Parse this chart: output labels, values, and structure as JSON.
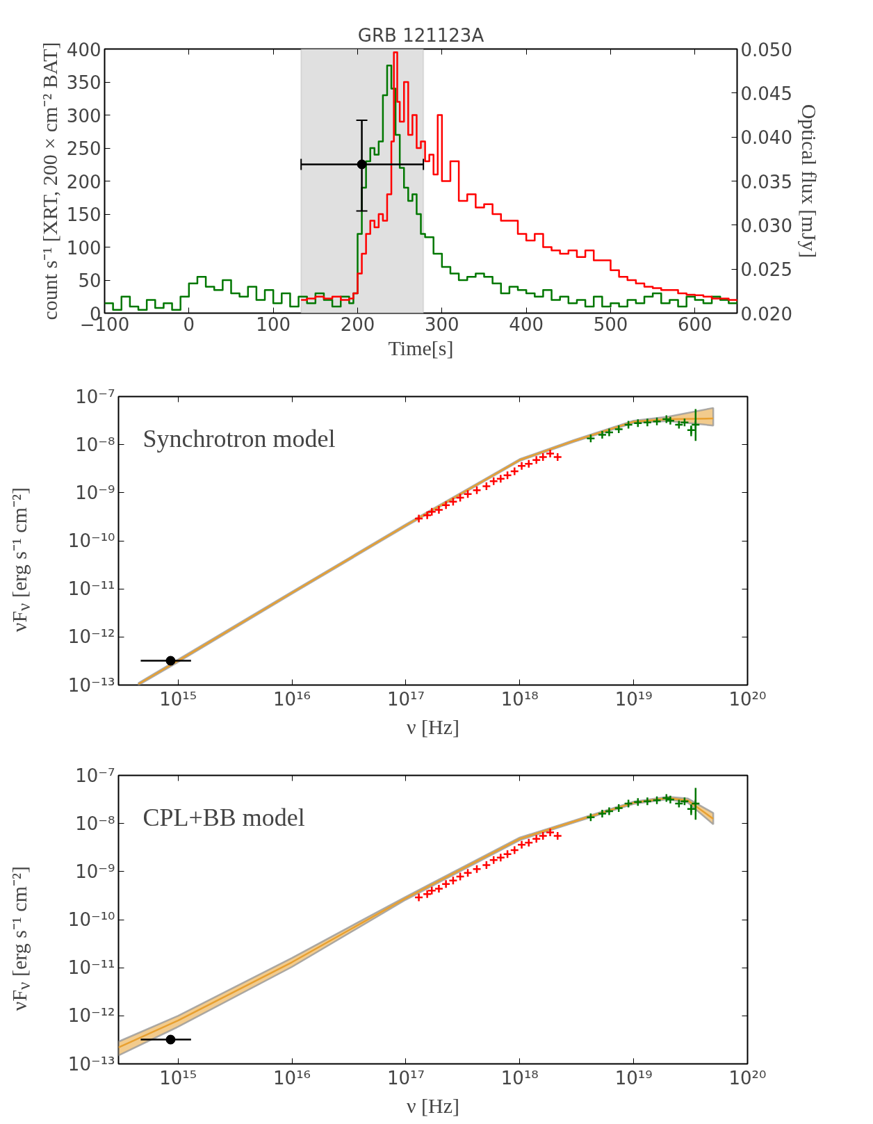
{
  "chart_data": [
    {
      "type": "step",
      "title": "GRB 121123A",
      "xlabel": "Time[s]",
      "ylabel": "count s⁻¹ [XRT, 200 × cm⁻² BAT]",
      "y2label": "Optical flux [mJy]",
      "xlim": [
        -100,
        650
      ],
      "xticks": [
        {
          "value": -100,
          "label": "−100"
        },
        0,
        100,
        200,
        300,
        400,
        500,
        600
      ],
      "ylim": [
        0,
        400
      ],
      "yticks": [
        0,
        50,
        100,
        150,
        200,
        250,
        300,
        350,
        400
      ],
      "y2lim": [
        0.02,
        0.05
      ],
      "y2ticks": [
        {
          "value": 0.02,
          "label": "0.020"
        },
        {
          "value": 0.025,
          "label": "0.025"
        },
        {
          "value": 0.03,
          "label": "0.030"
        },
        {
          "value": 0.035,
          "label": "0.035"
        },
        {
          "value": 0.04,
          "label": "0.040"
        },
        {
          "value": 0.045,
          "label": "0.045"
        },
        {
          "value": 0.05,
          "label": "0.050"
        }
      ],
      "bands": [
        {
          "axis": "x",
          "from": 133,
          "to": 278,
          "color": "#e0e0e0"
        }
      ],
      "series": [
        {
          "color": "#007700",
          "x": [
            -100,
            -90,
            -80,
            -70,
            -60,
            -50,
            -40,
            -30,
            -20,
            -10,
            0,
            10,
            20,
            30,
            40,
            50,
            60,
            70,
            80,
            90,
            100,
            110,
            120,
            130,
            140,
            150,
            160,
            170,
            180,
            190,
            195,
            200,
            205,
            210,
            215,
            220,
            225,
            230,
            235,
            240,
            245,
            250,
            255,
            260,
            265,
            270,
            275,
            280,
            290,
            300,
            310,
            320,
            330,
            340,
            350,
            360,
            370,
            380,
            390,
            400,
            410,
            420,
            430,
            440,
            450,
            460,
            470,
            480,
            490,
            500,
            510,
            520,
            530,
            540,
            550,
            560,
            570,
            580,
            590,
            600,
            610,
            620,
            630,
            640,
            650
          ],
          "values": [
            15,
            5,
            25,
            10,
            5,
            20,
            8,
            15,
            5,
            25,
            45,
            55,
            40,
            35,
            50,
            30,
            25,
            40,
            20,
            35,
            15,
            30,
            10,
            25,
            15,
            30,
            20,
            10,
            25,
            15,
            30,
            120,
            190,
            230,
            250,
            240,
            260,
            330,
            375,
            340,
            270,
            220,
            190,
            170,
            180,
            150,
            120,
            115,
            90,
            70,
            60,
            50,
            55,
            60,
            55,
            45,
            30,
            40,
            35,
            30,
            25,
            35,
            20,
            25,
            15,
            20,
            10,
            25,
            10,
            15,
            10,
            20,
            15,
            25,
            30,
            15,
            20,
            10,
            25,
            20,
            15,
            25,
            20,
            15,
            20
          ]
        },
        {
          "color": "#ff0000",
          "x": [
            133,
            140,
            150,
            160,
            170,
            180,
            190,
            195,
            200,
            205,
            210,
            215,
            220,
            225,
            230,
            235,
            240,
            243,
            247,
            250,
            255,
            260,
            265,
            270,
            275,
            280,
            285,
            290,
            295,
            300,
            310,
            320,
            330,
            340,
            350,
            360,
            370,
            380,
            390,
            400,
            410,
            420,
            430,
            440,
            450,
            460,
            470,
            480,
            490,
            500,
            510,
            520,
            530,
            540,
            550,
            560,
            570,
            580,
            590,
            600,
            610,
            620,
            630,
            640,
            650
          ],
          "values": [
            20,
            22,
            25,
            22,
            25,
            20,
            22,
            30,
            60,
            90,
            120,
            140,
            130,
            150,
            140,
            180,
            260,
            395,
            320,
            290,
            350,
            270,
            300,
            250,
            260,
            230,
            240,
            210,
            300,
            200,
            230,
            170,
            180,
            160,
            165,
            150,
            140,
            140,
            120,
            110,
            120,
            100,
            95,
            90,
            95,
            85,
            95,
            80,
            80,
            65,
            55,
            50,
            45,
            40,
            38,
            35,
            35,
            30,
            28,
            27,
            25,
            22,
            22,
            20,
            18
          ]
        },
        {
          "type": "scatter",
          "axis": "y2",
          "color": "#000000",
          "marker": "circle",
          "x": [
            205
          ],
          "values": [
            0.0369
          ],
          "errors": [
            [
              0.0316,
              0.0419
            ]
          ],
          "xerrors": [
            [
              133,
              278
            ]
          ]
        }
      ]
    },
    {
      "type": "line",
      "xlabel": "ν [Hz]",
      "ylabel": "νF$_{ν}$ [erg s⁻¹ cm⁻²]",
      "log": "xy",
      "annotations": [
        "Synchrotron model"
      ],
      "xlim": [
        300000000000000.0,
        1e+20
      ],
      "xticks": [
        {
          "value": 1000000000000000.0,
          "label": "10¹⁵"
        },
        {
          "value": 1e+16,
          "label": "10¹⁶"
        },
        {
          "value": 1e+17,
          "label": "10¹⁷"
        },
        {
          "value": 1e+18,
          "label": "10¹⁸"
        },
        {
          "value": 1e+19,
          "label": "10¹⁹"
        },
        {
          "value": 1e+20,
          "label": "10²⁰"
        }
      ],
      "ylim": [
        1e-13,
        1e-07
      ],
      "yticks": [
        {
          "value": 1e-13,
          "label": "10⁻¹³"
        },
        {
          "value": 1e-12,
          "label": "10⁻¹²"
        },
        {
          "value": 1e-11,
          "label": "10⁻¹¹"
        },
        {
          "value": 1e-10,
          "label": "10⁻¹⁰"
        },
        {
          "value": 1e-09,
          "label": "10⁻⁹"
        },
        {
          "value": 1e-08,
          "label": "10⁻⁸"
        },
        {
          "value": 1e-07,
          "label": "10⁻⁷"
        }
      ],
      "series": [
        {
          "color": "#e8a030",
          "x": [
            450000000000000.0,
            1000000000000000.0,
            1e+16,
            1e+17,
            1e+18,
            3e+18,
            1e+19,
            2e+19,
            5e+19
          ],
          "values": [
            1.05e-13,
            3.2e-13,
            8.3e-12,
            2.1e-10,
            4.8e-09,
            1.2e-08,
            3e-08,
            3.4e-08,
            3.5e-08
          ],
          "lower": [
            1e-13,
            3e-13,
            7.9e-12,
            2e-10,
            4.6e-09,
            1.15e-08,
            2.85e-08,
            3.1e-08,
            2.5e-08
          ],
          "upper": [
            1.1e-13,
            3.4e-13,
            8.7e-12,
            2.2e-10,
            5e-09,
            1.25e-08,
            3.15e-08,
            3.8e-08,
            5.8e-08
          ]
        },
        {
          "type": "scatter",
          "color": "#ff0000",
          "marker": "cross",
          "x": [
            1.3e+17,
            1.54e+17,
            1.69e+17,
            1.95e+17,
            2.25e+17,
            2.6e+17,
            3e+17,
            3.5e+17,
            4.2e+17,
            5.1e+17,
            5.9e+17,
            6.8e+17,
            7.8e+17,
            9e+17,
            1.04e+18,
            1.2e+18,
            1.4e+18,
            1.6e+18,
            1.85e+18,
            2.15e+18
          ],
          "values": [
            2.9e-10,
            3.4e-10,
            4e-10,
            4.4e-10,
            5.5e-10,
            6.5e-10,
            7.9e-10,
            9.4e-10,
            1.13e-09,
            1.36e-09,
            1.73e-09,
            1.95e-09,
            2.3e-09,
            2.8e-09,
            3.6e-09,
            4e-09,
            4.8e-09,
            5.5e-09,
            6.5e-09,
            5.5e-09
          ]
        },
        {
          "type": "scatter",
          "color": "#007700",
          "marker": "cross",
          "x": [
            4.2e+18,
            5.3e+18,
            6.1e+18,
            7.4e+18,
            9e+18,
            1.09e+19,
            1.32e+19,
            1.6e+19,
            1.94e+19,
            2.1e+19,
            2.5e+19,
            2.8e+19,
            3.2e+19,
            3.5e+19
          ],
          "values": [
            1.35e-08,
            1.6e-08,
            1.8e-08,
            2.1e-08,
            2.6e-08,
            2.8e-08,
            2.9e-08,
            3.05e-08,
            3.4e-08,
            3.15e-08,
            2.6e-08,
            2.9e-08,
            2e-08,
            2.6e-08
          ],
          "errors": [
            null,
            null,
            null,
            null,
            null,
            null,
            null,
            null,
            null,
            null,
            null,
            null,
            [
              1.5e-08,
              2.5e-08
            ],
            [
              1.2e-08,
              5.5e-08
            ]
          ]
        },
        {
          "type": "scatter",
          "color": "#000000",
          "marker": "circle",
          "x": [
            860000000000000.0
          ],
          "values": [
            3.2e-13
          ],
          "xerrors": [
            [
              470000000000000.0,
              1300000000000000.0
            ]
          ]
        }
      ]
    },
    {
      "type": "line",
      "xlabel": "ν [Hz]",
      "ylabel": "νF$_{ν}$ [erg s⁻¹ cm⁻²]",
      "log": "xy",
      "annotations": [
        "CPL+BB model"
      ],
      "xlim": [
        300000000000000.0,
        1e+20
      ],
      "xticks": [
        {
          "value": 1000000000000000.0,
          "label": "10¹⁵"
        },
        {
          "value": 1e+16,
          "label": "10¹⁶"
        },
        {
          "value": 1e+17,
          "label": "10¹⁷"
        },
        {
          "value": 1e+18,
          "label": "10¹⁸"
        },
        {
          "value": 1e+19,
          "label": "10¹⁹"
        },
        {
          "value": 1e+20,
          "label": "10²⁰"
        }
      ],
      "ylim": [
        1e-13,
        1e-07
      ],
      "yticks": [
        {
          "value": 1e-13,
          "label": "10⁻¹³"
        },
        {
          "value": 1e-12,
          "label": "10⁻¹²"
        },
        {
          "value": 1e-11,
          "label": "10⁻¹¹"
        },
        {
          "value": 1e-10,
          "label": "10⁻¹⁰"
        },
        {
          "value": 1e-09,
          "label": "10⁻⁹"
        },
        {
          "value": 1e-08,
          "label": "10⁻⁸"
        },
        {
          "value": 1e-07,
          "label": "10⁻⁷"
        }
      ],
      "series": [
        {
          "color": "#e8a030",
          "x": [
            300000000000000.0,
            1000000000000000.0,
            1e+16,
            1e+17,
            1e+18,
            3e+18,
            1e+19,
            2e+19,
            3e+19,
            5e+19
          ],
          "values": [
            2.2e-13,
            8e-13,
            1.3e-11,
            2.8e-10,
            4.8e-09,
            1.1e-08,
            2.7e-08,
            3.4e-08,
            3e-08,
            1.25e-08
          ],
          "lower": [
            1.5e-13,
            5.9e-13,
            1.04e-11,
            2.6e-10,
            4.5e-09,
            1.05e-08,
            2.55e-08,
            3.2e-08,
            2.7e-08,
            9.6e-09
          ],
          "upper": [
            2.9e-13,
            1e-12,
            1.6e-11,
            3e-10,
            5.1e-09,
            1.15e-08,
            2.85e-08,
            3.6e-08,
            3.3e-08,
            1.65e-08
          ]
        },
        {
          "type": "scatter",
          "color": "#ff0000",
          "marker": "cross",
          "x": [
            1.3e+17,
            1.54e+17,
            1.69e+17,
            1.95e+17,
            2.25e+17,
            2.6e+17,
            3e+17,
            3.5e+17,
            4.2e+17,
            5.1e+17,
            5.9e+17,
            6.8e+17,
            7.8e+17,
            9e+17,
            1.04e+18,
            1.2e+18,
            1.4e+18,
            1.6e+18,
            1.85e+18,
            2.15e+18
          ],
          "values": [
            2.9e-10,
            3.4e-10,
            4e-10,
            4.4e-10,
            5.5e-10,
            6.5e-10,
            7.9e-10,
            9.4e-10,
            1.13e-09,
            1.36e-09,
            1.73e-09,
            1.95e-09,
            2.3e-09,
            2.8e-09,
            3.6e-09,
            4e-09,
            4.8e-09,
            5.5e-09,
            6.5e-09,
            5.5e-09
          ]
        },
        {
          "type": "scatter",
          "color": "#007700",
          "marker": "cross",
          "x": [
            4.2e+18,
            5.3e+18,
            6.1e+18,
            7.4e+18,
            9e+18,
            1.09e+19,
            1.32e+19,
            1.6e+19,
            1.94e+19,
            2.1e+19,
            2.5e+19,
            2.8e+19,
            3.2e+19,
            3.5e+19
          ],
          "values": [
            1.35e-08,
            1.6e-08,
            1.8e-08,
            2.1e-08,
            2.6e-08,
            2.8e-08,
            2.9e-08,
            3.05e-08,
            3.4e-08,
            3.15e-08,
            2.6e-08,
            2.9e-08,
            2e-08,
            2.6e-08
          ],
          "errors": [
            null,
            null,
            null,
            null,
            null,
            null,
            null,
            null,
            null,
            null,
            null,
            null,
            [
              1.5e-08,
              2.5e-08
            ],
            [
              1.2e-08,
              5.5e-08
            ]
          ]
        },
        {
          "type": "scatter",
          "color": "#000000",
          "marker": "circle",
          "x": [
            860000000000000.0
          ],
          "values": [
            3.2e-13
          ],
          "xerrors": [
            [
              470000000000000.0,
              1300000000000000.0
            ]
          ]
        }
      ]
    }
  ]
}
